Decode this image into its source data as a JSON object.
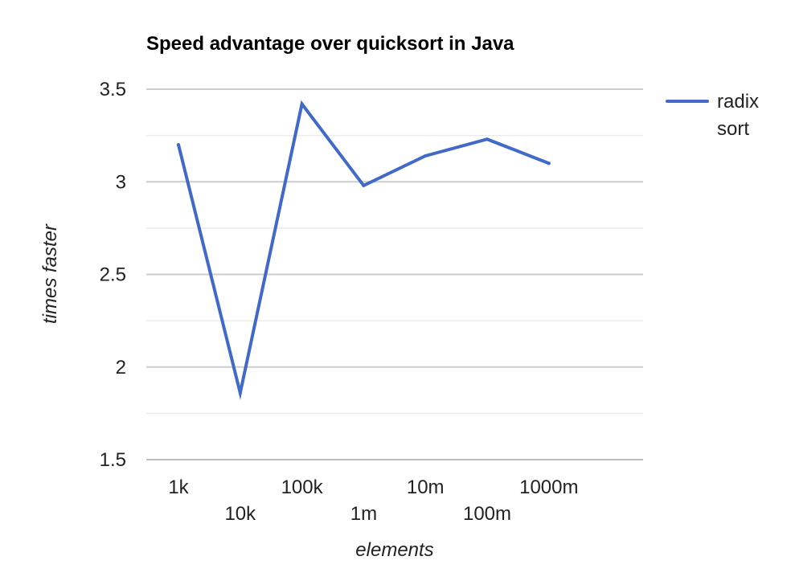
{
  "chart_data": {
    "type": "line",
    "title": "Speed advantage over quicksort in Java",
    "xlabel": "elements",
    "ylabel": "times faster",
    "categories": [
      "1k",
      "10k",
      "100k",
      "1m",
      "10m",
      "100m",
      "1000m"
    ],
    "series": [
      {
        "name": "radix sort",
        "legend_lines": [
          "radix",
          "sort"
        ],
        "values": [
          3.2,
          1.86,
          3.42,
          2.98,
          3.14,
          3.23,
          3.1
        ],
        "color": "#4169C8"
      }
    ],
    "ylim": [
      1.5,
      3.5
    ],
    "yticks": [
      "3.5",
      "3",
      "2.5",
      "2",
      "1.5"
    ],
    "y_major_step": 0.5,
    "y_minor_step": 0.25,
    "grid": true,
    "legend_position": "right",
    "colors": {
      "major_grid": "#CCCCCC",
      "minor_grid": "#EBEBEB",
      "baseline": "#BDBDBD"
    }
  }
}
